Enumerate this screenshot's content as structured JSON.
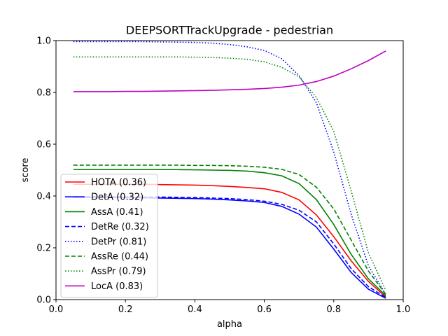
{
  "chart_data": {
    "type": "line",
    "title": "DEEPSORTTrackUpgrade - pedestrian",
    "xlabel": "alpha",
    "ylabel": "score",
    "xlim": [
      0.0,
      1.0
    ],
    "ylim": [
      0.0,
      1.0
    ],
    "xticks": [
      "0.0",
      "0.2",
      "0.4",
      "0.6",
      "0.8",
      "1.0"
    ],
    "yticks": [
      "0.0",
      "0.2",
      "0.4",
      "0.6",
      "0.8",
      "1.0"
    ],
    "grid": false,
    "legend_position": "lower-left",
    "x": [
      0.05,
      0.1,
      0.15,
      0.2,
      0.25,
      0.3,
      0.35,
      0.4,
      0.45,
      0.5,
      0.55,
      0.6,
      0.65,
      0.7,
      0.75,
      0.8,
      0.85,
      0.9,
      0.95
    ],
    "series": [
      {
        "name": "HOTA (0.36)",
        "color": "#ff0000",
        "dash": "solid",
        "values": [
          0.445,
          0.445,
          0.445,
          0.445,
          0.445,
          0.444,
          0.443,
          0.442,
          0.44,
          0.437,
          0.433,
          0.428,
          0.414,
          0.385,
          0.327,
          0.243,
          0.15,
          0.07,
          0.01
        ]
      },
      {
        "name": "DetA (0.32)",
        "color": "#0000ff",
        "dash": "solid",
        "values": [
          0.395,
          0.395,
          0.395,
          0.394,
          0.393,
          0.392,
          0.391,
          0.39,
          0.388,
          0.385,
          0.381,
          0.375,
          0.36,
          0.33,
          0.28,
          0.195,
          0.105,
          0.04,
          0.005
        ]
      },
      {
        "name": "AssA (0.41)",
        "color": "#008000",
        "dash": "solid",
        "values": [
          0.502,
          0.502,
          0.502,
          0.502,
          0.502,
          0.502,
          0.502,
          0.501,
          0.5,
          0.499,
          0.496,
          0.49,
          0.478,
          0.448,
          0.386,
          0.29,
          0.175,
          0.08,
          0.015
        ]
      },
      {
        "name": "DetRe (0.32)",
        "color": "#0000ff",
        "dash": "dashed",
        "values": [
          0.397,
          0.397,
          0.397,
          0.397,
          0.396,
          0.396,
          0.395,
          0.394,
          0.392,
          0.39,
          0.386,
          0.38,
          0.368,
          0.345,
          0.3,
          0.215,
          0.12,
          0.05,
          0.008
        ]
      },
      {
        "name": "DetPr (0.81)",
        "color": "#0000ff",
        "dash": "dotted",
        "values": [
          0.996,
          0.996,
          0.996,
          0.996,
          0.996,
          0.995,
          0.994,
          0.993,
          0.99,
          0.985,
          0.976,
          0.962,
          0.93,
          0.865,
          0.76,
          0.57,
          0.33,
          0.13,
          0.02
        ]
      },
      {
        "name": "AssRe (0.44)",
        "color": "#008000",
        "dash": "dashed",
        "values": [
          0.519,
          0.519,
          0.519,
          0.519,
          0.519,
          0.519,
          0.519,
          0.518,
          0.518,
          0.517,
          0.515,
          0.511,
          0.503,
          0.483,
          0.434,
          0.35,
          0.23,
          0.11,
          0.02
        ]
      },
      {
        "name": "AssPr (0.79)",
        "color": "#008000",
        "dash": "dotted",
        "values": [
          0.937,
          0.937,
          0.937,
          0.937,
          0.937,
          0.937,
          0.937,
          0.936,
          0.935,
          0.932,
          0.928,
          0.918,
          0.897,
          0.86,
          0.78,
          0.65,
          0.42,
          0.18,
          0.035
        ]
      },
      {
        "name": "LocA (0.83)",
        "color": "#bf00bf",
        "dash": "solid",
        "values": [
          0.803,
          0.803,
          0.803,
          0.804,
          0.804,
          0.805,
          0.806,
          0.807,
          0.808,
          0.81,
          0.812,
          0.815,
          0.82,
          0.828,
          0.842,
          0.863,
          0.891,
          0.923,
          0.96
        ]
      }
    ]
  }
}
